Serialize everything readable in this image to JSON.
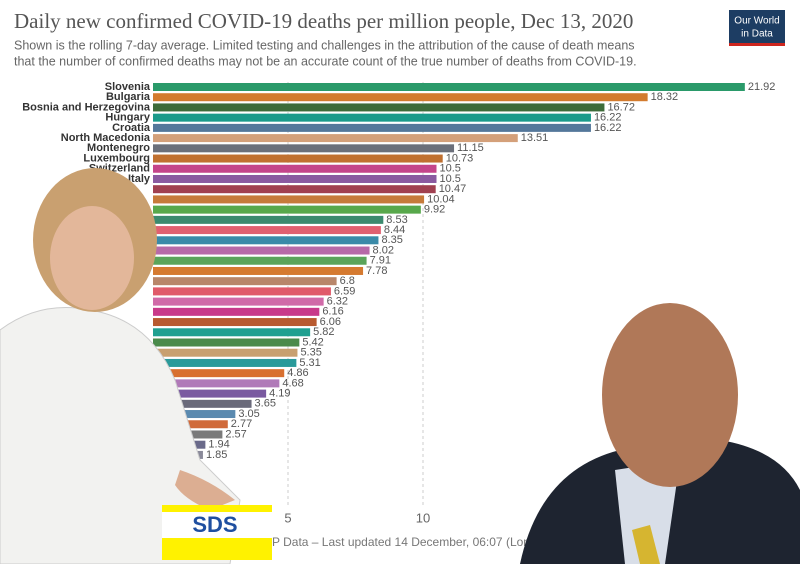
{
  "chart_data": {
    "type": "bar",
    "orientation": "horizontal",
    "title": "Daily new confirmed COVID-19 deaths per million people, Dec 13, 2020",
    "subtitle": [
      "Shown is the rolling 7-day average. Limited testing and challenges in the attribution of the cause of death means",
      "that the number of confirmed deaths may not be an accurate count of the true number of deaths from COVID-19."
    ],
    "logo": [
      "Our World",
      "in Data"
    ],
    "footer": "P Data – Last updated 14 December, 06:07 (Lon",
    "badge": "SDS",
    "categories": [
      "Slovenia",
      "Bulgaria",
      "Bosnia and Herzegovina",
      "Hungary",
      "Croatia",
      "North Macedonia",
      "Montenegro",
      "Luxembourg",
      "Switzerland",
      "Italy",
      null,
      null,
      null,
      null,
      null,
      null,
      null,
      null,
      null,
      null,
      null,
      null,
      null,
      null,
      null,
      null,
      null,
      null,
      null,
      null,
      null,
      null,
      null,
      null,
      null,
      null,
      null
    ],
    "values": [
      21.92,
      18.32,
      16.72,
      16.22,
      16.22,
      13.51,
      11.15,
      10.73,
      10.5,
      10.5,
      10.47,
      10.04,
      9.92,
      8.53,
      8.44,
      8.35,
      8.02,
      7.91,
      7.78,
      6.8,
      6.59,
      6.32,
      6.16,
      6.06,
      5.82,
      5.42,
      5.35,
      5.31,
      4.86,
      4.68,
      4.19,
      3.65,
      3.05,
      2.77,
      2.57,
      1.94,
      1.85
    ],
    "colors": [
      "#2a9a6a",
      "#d37b2e",
      "#3d6b39",
      "#1a9a8a",
      "#54779a",
      "#d4a07a",
      "#6b6f7a",
      "#c07030",
      "#c4458a",
      "#8a5aa0",
      "#a04050",
      "#c67a3a",
      "#58a84b",
      "#3b8a6e",
      "#e06070",
      "#3a8aa8",
      "#b66aa8",
      "#5aa45a",
      "#d57a30",
      "#b8866a",
      "#e05a6a",
      "#d06aa8",
      "#c83a8a",
      "#b85a30",
      "#20a090",
      "#4a8a4a",
      "#c8a070",
      "#2a9a9a",
      "#d87030",
      "#b07ab8",
      "#7a5aa0",
      "#6a6a7a",
      "#5a8ab0",
      "#d06a3a",
      "#7a7a7a",
      "#6a6a8a",
      "#8a8a9a"
    ],
    "xlim": [
      0,
      22
    ],
    "xticks": [
      5,
      10
    ],
    "grid": true
  }
}
